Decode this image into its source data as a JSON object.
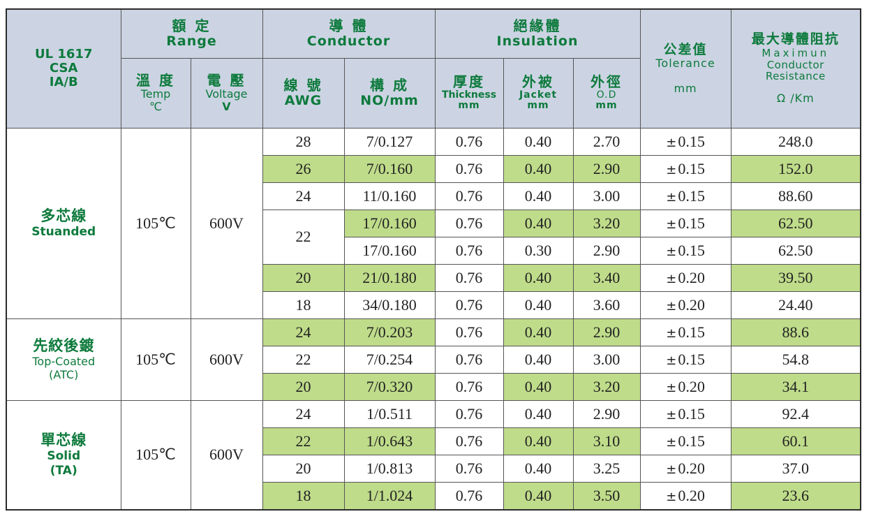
{
  "header": {
    "standard": [
      "UL 1617",
      "CSA",
      "IA/B"
    ],
    "range": {
      "zh": "額 定",
      "en": "Range"
    },
    "temp": {
      "zh": "溫 度",
      "en": "Temp",
      "unit": "℃"
    },
    "voltage": {
      "zh": "電 壓",
      "en": "Voltage",
      "unit": "V"
    },
    "conductor": {
      "zh": "導 體",
      "en": "Conductor"
    },
    "awg": {
      "zh": "線 號",
      "en": "AWG"
    },
    "construction": {
      "zh": "構 成",
      "en": "NO/mm"
    },
    "insulation": {
      "zh": "絕緣體",
      "en": "Insulation"
    },
    "thickness": {
      "zh": "厚度",
      "en": "Thickness",
      "unit": "mm"
    },
    "jacket": {
      "zh": "外被",
      "en": "Jacket",
      "unit": "mm"
    },
    "od": {
      "zh": "外徑",
      "en": "O.D",
      "unit": "mm"
    },
    "tolerance": {
      "zh": "公差值",
      "en": "Tolerance",
      "unit": "mm"
    },
    "resistance": {
      "zh": "最大導體阻抗",
      "en1": "Maximun",
      "en2": "Conductor",
      "en3": "Resistance",
      "unit": "Ω /Km"
    }
  },
  "groups": [
    {
      "zh": "多芯線",
      "en": "Stuanded",
      "sub": "",
      "temp": "105℃",
      "voltage": "600V",
      "rows": [
        {
          "awg": "28",
          "no": "7/0.127",
          "thick": "0.76",
          "jacket": "0.40",
          "od": "2.70",
          "tol": "0.15",
          "res": "248.0"
        },
        {
          "awg": "26",
          "no": "7/0.160",
          "thick": "0.76",
          "jacket": "0.40",
          "od": "2.90",
          "tol": "0.15",
          "res": "152.0"
        },
        {
          "awg": "24",
          "no": "11/0.160",
          "thick": "0.76",
          "jacket": "0.40",
          "od": "3.00",
          "tol": "0.15",
          "res": "88.60"
        },
        {
          "awg": "22",
          "no": "17/0.160",
          "thick": "0.76",
          "jacket": "0.40",
          "od": "3.20",
          "tol": "0.15",
          "res": "62.50"
        },
        {
          "awg": "",
          "no": "17/0.160",
          "thick": "0.76",
          "jacket": "0.30",
          "od": "2.90",
          "tol": "0.15",
          "res": "62.50"
        },
        {
          "awg": "20",
          "no": "21/0.180",
          "thick": "0.76",
          "jacket": "0.40",
          "od": "3.40",
          "tol": "0.20",
          "res": "39.50"
        },
        {
          "awg": "18",
          "no": "34/0.180",
          "thick": "0.76",
          "jacket": "0.40",
          "od": "3.60",
          "tol": "0.20",
          "res": "24.40"
        }
      ]
    },
    {
      "zh": "先絞後鍍",
      "en": "Top-Coated",
      "sub": "(ATC)",
      "temp": "105℃",
      "voltage": "600V",
      "rows": [
        {
          "awg": "24",
          "no": "7/0.203",
          "thick": "0.76",
          "jacket": "0.40",
          "od": "2.90",
          "tol": "0.15",
          "res": "88.6"
        },
        {
          "awg": "22",
          "no": "7/0.254",
          "thick": "0.76",
          "jacket": "0.40",
          "od": "3.00",
          "tol": "0.15",
          "res": "54.8"
        },
        {
          "awg": "20",
          "no": "7/0.320",
          "thick": "0.76",
          "jacket": "0.40",
          "od": "3.20",
          "tol": "0.20",
          "res": "34.1"
        }
      ]
    },
    {
      "zh": "單芯線",
      "en": "Solid",
      "sub": "(TA)",
      "temp": "105℃",
      "voltage": "600V",
      "rows": [
        {
          "awg": "24",
          "no": "1/0.511",
          "thick": "0.76",
          "jacket": "0.40",
          "od": "2.90",
          "tol": "0.15",
          "res": "92.4"
        },
        {
          "awg": "22",
          "no": "1/0.643",
          "thick": "0.76",
          "jacket": "0.40",
          "od": "3.10",
          "tol": "0.15",
          "res": "60.1"
        },
        {
          "awg": "20",
          "no": "1/0.813",
          "thick": "0.76",
          "jacket": "0.40",
          "od": "3.25",
          "tol": "0.20",
          "res": "37.0"
        },
        {
          "awg": "18",
          "no": "1/1.024",
          "thick": "0.76",
          "jacket": "0.40",
          "od": "3.50",
          "tol": "0.20",
          "res": "23.6"
        }
      ]
    }
  ],
  "tolerance_sign": "±",
  "colors": {
    "header_bg": "#ccd4e3",
    "header_text": "#0d7a3c",
    "highlight": "#bfdc8a"
  }
}
